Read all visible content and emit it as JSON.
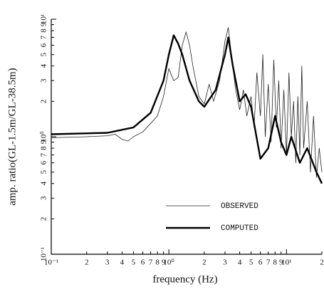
{
  "chart_data": {
    "type": "line",
    "x_label": "frequency (Hz)",
    "y_label": "amp. ratio(GL-1.5m/GL-38.5m)",
    "xscale": "log",
    "yscale": "log",
    "grid": false,
    "xlim": [
      0.1,
      20
    ],
    "ylim": [
      0.1,
      10
    ],
    "xticks": [
      {
        "value": 0.1,
        "label": "10⁻¹"
      },
      {
        "value": 0.2,
        "label": "2"
      },
      {
        "value": 0.3,
        "label": "3"
      },
      {
        "value": 0.4,
        "label": "4"
      },
      {
        "value": 0.5,
        "label": "5"
      },
      {
        "value": 0.6,
        "label": "6"
      },
      {
        "value": 0.7,
        "label": "7"
      },
      {
        "value": 0.8,
        "label": "8"
      },
      {
        "value": 0.9,
        "label": "9"
      },
      {
        "value": 1,
        "label": "10⁰"
      },
      2,
      3,
      4,
      5,
      6,
      7,
      8,
      9,
      {
        "value": 10,
        "label": "10¹"
      },
      {
        "value": 20,
        "label": "2"
      }
    ],
    "yticks": [
      {
        "value": 0.1,
        "label": "10⁻¹"
      },
      {
        "value": 0.2,
        "label": "2"
      },
      {
        "value": 0.3,
        "label": "3"
      },
      {
        "value": 0.4,
        "label": "4"
      },
      {
        "value": 0.5,
        "label": "5"
      },
      {
        "value": 0.6,
        "label": "6"
      },
      {
        "value": 0.7,
        "label": "7"
      },
      {
        "value": 0.8,
        "label": "8"
      },
      {
        "value": 0.9,
        "label": "9"
      },
      {
        "value": 1,
        "label": "10⁰"
      },
      2,
      3,
      4,
      5,
      6,
      7,
      8,
      9,
      {
        "value": 10,
        "label": "10¹"
      }
    ],
    "series": [
      {
        "name": "OBSERVED",
        "color": "#222",
        "line_width": 0.8,
        "x": [
          0.1,
          0.2,
          0.3,
          0.35,
          0.4,
          0.45,
          0.5,
          0.6,
          0.7,
          0.8,
          0.9,
          1.0,
          1.1,
          1.2,
          1.3,
          1.4,
          1.5,
          1.6,
          1.8,
          2.0,
          2.2,
          2.4,
          2.7,
          3.0,
          3.2,
          3.4,
          3.7,
          4.0,
          4.3,
          4.6,
          5.0,
          5.3,
          5.6,
          6.0,
          6.3,
          6.6,
          7.0,
          7.4,
          7.8,
          8.2,
          8.6,
          9.0,
          9.5,
          10,
          10.5,
          11,
          11.5,
          12,
          12.5,
          13,
          13.5,
          14,
          15,
          16,
          17,
          18,
          19,
          20
        ],
        "values": [
          0.98,
          1.0,
          1.02,
          1.05,
          0.95,
          0.92,
          1.0,
          1.1,
          1.3,
          1.5,
          2.2,
          3.8,
          3.0,
          3.2,
          6,
          7.8,
          6,
          4,
          2.2,
          1.9,
          2.8,
          2.0,
          3,
          6.5,
          8.5,
          5,
          2.5,
          1.7,
          2.5,
          1.5,
          2.2,
          1.2,
          3.5,
          1.5,
          5,
          1.0,
          2.8,
          0.9,
          4.5,
          1.2,
          3,
          0.8,
          2.5,
          0.7,
          3.5,
          1.0,
          2,
          0.6,
          2.2,
          0.7,
          4,
          0.8,
          2,
          0.5,
          1.5,
          0.45,
          0.8,
          0.5
        ]
      },
      {
        "name": "COMPUTED",
        "color": "#000",
        "line_width": 2.4,
        "x": [
          0.1,
          0.3,
          0.5,
          0.7,
          0.9,
          1.0,
          1.1,
          1.2,
          1.3,
          1.5,
          1.8,
          2.0,
          2.5,
          3.0,
          3.2,
          3.5,
          4.0,
          4.5,
          5,
          6,
          7,
          8,
          9,
          10,
          11,
          13,
          15,
          18,
          20
        ],
        "values": [
          1.05,
          1.08,
          1.2,
          1.6,
          3,
          5,
          7.3,
          6.2,
          5,
          3,
          2,
          1.8,
          2.5,
          5,
          7,
          4,
          2,
          2.3,
          1.8,
          0.65,
          0.8,
          1.5,
          0.9,
          0.7,
          1.0,
          0.6,
          0.8,
          0.5,
          0.4
        ]
      }
    ]
  }
}
